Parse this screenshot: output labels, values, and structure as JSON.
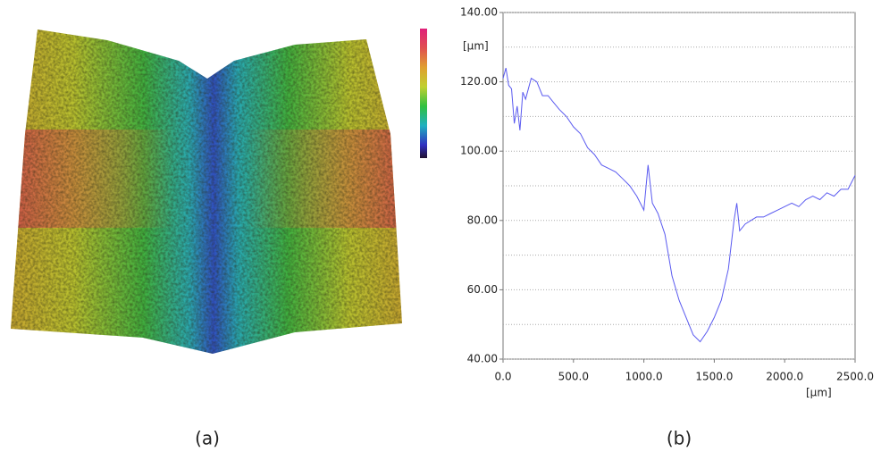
{
  "chart_data": {
    "type": "line",
    "caption_left": "(a)",
    "caption_right": "(b)",
    "y_unit": "[µm]",
    "x_unit": "[µm]",
    "color": "#5a5af0",
    "grid": true,
    "xlim": [
      0,
      2500
    ],
    "ylim": [
      40,
      140
    ],
    "xticks": [
      {
        "value": 0,
        "label": "0.0"
      },
      {
        "value": 500,
        "label": "500.0"
      },
      {
        "value": 1000,
        "label": "1000.0"
      },
      {
        "value": 1500,
        "label": "1500.0"
      },
      {
        "value": 2000,
        "label": "2000.0"
      },
      {
        "value": 2500,
        "label": "2500.0"
      }
    ],
    "yticks": [
      {
        "value": 40,
        "label": "40.00"
      },
      {
        "value": 60,
        "label": "60.00"
      },
      {
        "value": 80,
        "label": "80.00"
      },
      {
        "value": 100,
        "label": "100.00"
      },
      {
        "value": 120,
        "label": "120.00"
      },
      {
        "value": 140,
        "label": "140.00"
      }
    ],
    "yminorticks": [
      50,
      70,
      90,
      110,
      130
    ],
    "x": [
      0,
      20,
      40,
      60,
      80,
      100,
      120,
      140,
      160,
      200,
      240,
      280,
      320,
      360,
      400,
      450,
      500,
      550,
      600,
      650,
      700,
      750,
      800,
      850,
      900,
      950,
      1000,
      1030,
      1060,
      1100,
      1150,
      1200,
      1250,
      1300,
      1350,
      1400,
      1450,
      1500,
      1550,
      1600,
      1640,
      1660,
      1680,
      1720,
      1760,
      1800,
      1850,
      1900,
      1950,
      2000,
      2050,
      2100,
      2150,
      2200,
      2250,
      2300,
      2350,
      2400,
      2450,
      2500
    ],
    "values": [
      121,
      124,
      119,
      118,
      108,
      113,
      106,
      117,
      115,
      121,
      120,
      116,
      116,
      114,
      112,
      110,
      107,
      105,
      101,
      99,
      96,
      95,
      94,
      92,
      90,
      87,
      83,
      96,
      85,
      82,
      76,
      64,
      57,
      52,
      47,
      45,
      48,
      52,
      57,
      66,
      80,
      85,
      77,
      79,
      80,
      81,
      81,
      82,
      83,
      84,
      85,
      84,
      86,
      87,
      86,
      88,
      87,
      89,
      89,
      93
    ]
  }
}
